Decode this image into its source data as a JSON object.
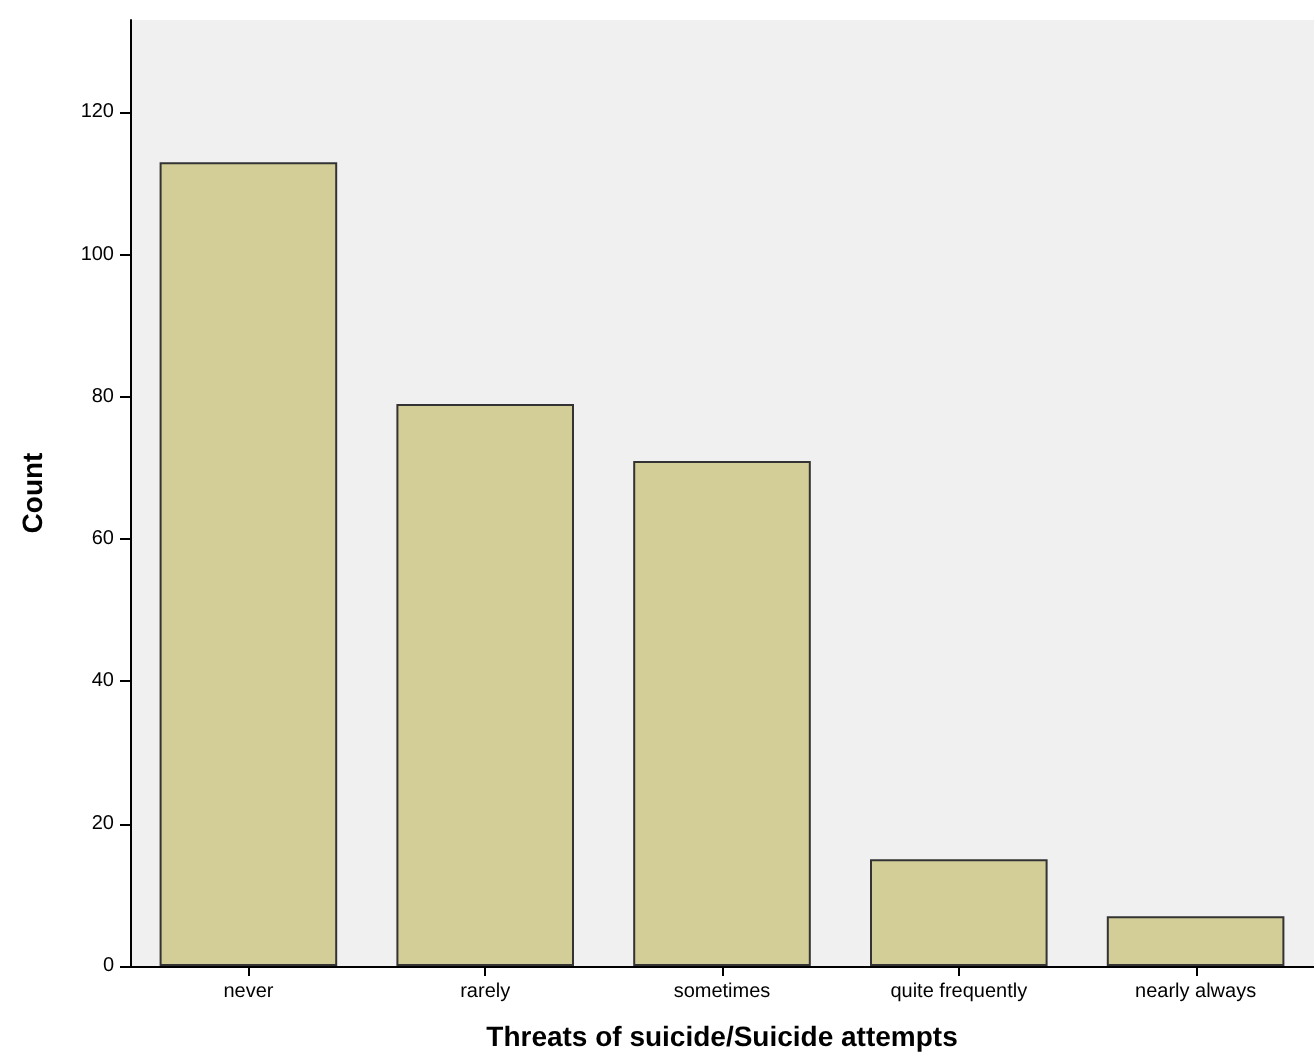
{
  "chart_data": {
    "type": "bar",
    "xlabel": "Threats of suicide/Suicide attempts",
    "ylabel": "Count",
    "categories": [
      "never",
      "rarely",
      "sometimes",
      "quite frequently",
      "nearly always"
    ],
    "values": [
      113,
      79,
      71,
      15,
      7
    ],
    "color": "#d3ce97",
    "ylim": [
      0,
      133
    ],
    "yticks": [
      0,
      20,
      40,
      60,
      80,
      100,
      120
    ],
    "grid": false
  }
}
